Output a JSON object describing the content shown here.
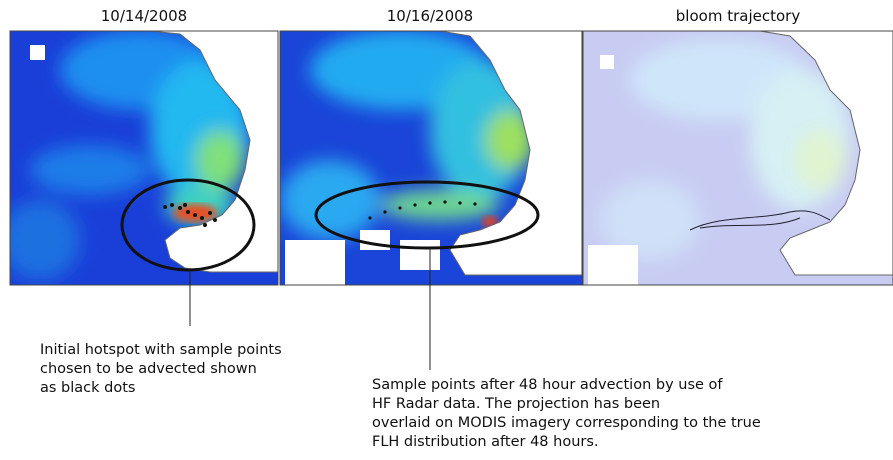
{
  "panels": [
    {
      "title": "10/14/2008"
    },
    {
      "title": "10/16/2008"
    },
    {
      "title": "bloom trajectory"
    }
  ],
  "annotations": [
    {
      "lines": [
        "Initial hotspot with sample points",
        "chosen to be advected shown",
        "as black dots"
      ]
    },
    {
      "lines": [
        "Sample points after 48 hour advection by use of",
        "HF Radar data. The projection has been",
        "overlaid on MODIS imagery corresponding to the true",
        "FLH distribution after 48 hours."
      ]
    }
  ]
}
